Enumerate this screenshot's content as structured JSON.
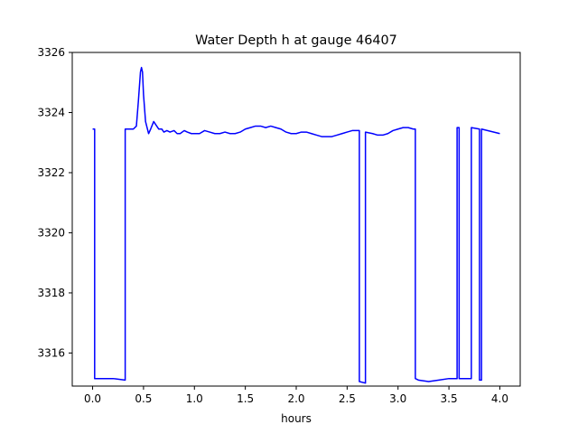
{
  "chart_data": {
    "type": "line",
    "title": "Water Depth h at gauge 46407",
    "xlabel": "hours",
    "ylabel": "",
    "xlim": [
      -0.2,
      4.2
    ],
    "ylim": [
      3314.9,
      3326.0
    ],
    "xticks": [
      0.0,
      0.5,
      1.0,
      1.5,
      2.0,
      2.5,
      3.0,
      3.5,
      4.0
    ],
    "xtick_labels": [
      "0.0",
      "0.5",
      "1.0",
      "1.5",
      "2.0",
      "2.5",
      "3.0",
      "3.5",
      "4.0"
    ],
    "yticks": [
      3316,
      3318,
      3320,
      3322,
      3324,
      3326
    ],
    "ytick_labels": [
      "3316",
      "3318",
      "3320",
      "3322",
      "3324",
      "3326"
    ],
    "grid": false,
    "line_color": "#0000ff",
    "series": [
      {
        "x": [
          0.0,
          0.02,
          0.02,
          0.1,
          0.2,
          0.32,
          0.32,
          0.35,
          0.4,
          0.43,
          0.45,
          0.47,
          0.48,
          0.49,
          0.5,
          0.52,
          0.55,
          0.57,
          0.6,
          0.62,
          0.65,
          0.68,
          0.7,
          0.73,
          0.76,
          0.8,
          0.83,
          0.86,
          0.9,
          0.93,
          0.97,
          1.0,
          1.05,
          1.1,
          1.15,
          1.2,
          1.25,
          1.3,
          1.35,
          1.4,
          1.45,
          1.5,
          1.55,
          1.6,
          1.65,
          1.7,
          1.75,
          1.8,
          1.85,
          1.9,
          1.95,
          2.0,
          2.05,
          2.1,
          2.15,
          2.2,
          2.25,
          2.3,
          2.35,
          2.4,
          2.45,
          2.5,
          2.55,
          2.6,
          2.62,
          2.62,
          2.68,
          2.68,
          2.75,
          2.8,
          2.85,
          2.9,
          2.95,
          3.0,
          3.05,
          3.1,
          3.15,
          3.17,
          3.17,
          3.2,
          3.3,
          3.4,
          3.5,
          3.58,
          3.58,
          3.6,
          3.6,
          3.72,
          3.72,
          3.8,
          3.8,
          3.82,
          3.82,
          4.0
        ],
        "y": [
          3323.45,
          3323.45,
          3315.15,
          3315.15,
          3315.15,
          3315.1,
          3323.45,
          3323.45,
          3323.45,
          3323.55,
          3324.4,
          3325.35,
          3325.5,
          3325.35,
          3324.6,
          3323.7,
          3323.3,
          3323.45,
          3323.7,
          3323.6,
          3323.45,
          3323.45,
          3323.35,
          3323.4,
          3323.35,
          3323.4,
          3323.3,
          3323.3,
          3323.4,
          3323.35,
          3323.3,
          3323.3,
          3323.3,
          3323.4,
          3323.35,
          3323.3,
          3323.3,
          3323.35,
          3323.3,
          3323.3,
          3323.35,
          3323.45,
          3323.5,
          3323.55,
          3323.55,
          3323.5,
          3323.55,
          3323.5,
          3323.45,
          3323.35,
          3323.3,
          3323.3,
          3323.35,
          3323.35,
          3323.3,
          3323.25,
          3323.2,
          3323.2,
          3323.2,
          3323.25,
          3323.3,
          3323.35,
          3323.4,
          3323.4,
          3323.4,
          3315.05,
          3315.0,
          3323.35,
          3323.3,
          3323.25,
          3323.25,
          3323.3,
          3323.4,
          3323.45,
          3323.5,
          3323.5,
          3323.45,
          3323.45,
          3315.15,
          3315.1,
          3315.05,
          3315.1,
          3315.15,
          3315.15,
          3323.5,
          3323.5,
          3315.15,
          3315.15,
          3323.5,
          3323.45,
          3315.1,
          3315.1,
          3323.45,
          3323.3
        ]
      }
    ]
  }
}
